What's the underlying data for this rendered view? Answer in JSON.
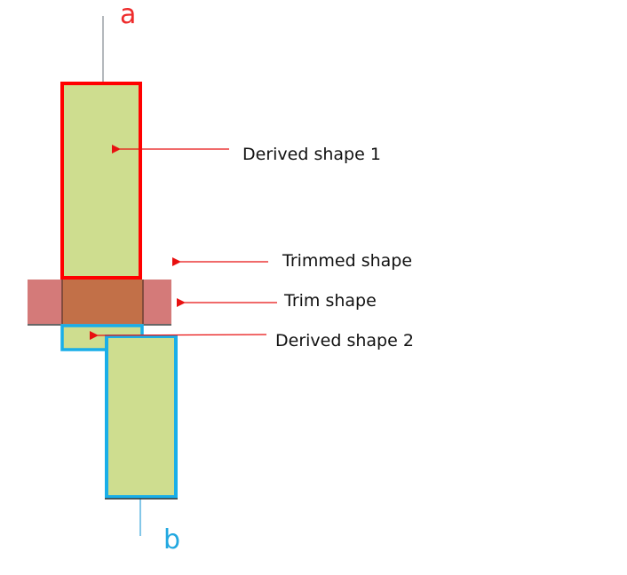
{
  "endpoints": {
    "a": "a",
    "b": "b"
  },
  "labels": {
    "derived_shape_1": "Derived shape 1",
    "trimmed_shape": "Trimmed shape",
    "trim_shape": "Trim shape",
    "derived_shape_2": "Derived shape 2"
  },
  "colors": {
    "derived_1_outline": "#ff0000",
    "derived_2_outline": "#19aee8",
    "shape_fill": "#cedd8f",
    "trim_fill": "#d47a79",
    "trim_overlap_fill": "#c27048",
    "arrow": "#e81010",
    "axis_a": "#9aa0a6",
    "axis_b": "#5ab4e0",
    "label_a": "#ee2b2b",
    "label_b": "#22a8e0"
  }
}
